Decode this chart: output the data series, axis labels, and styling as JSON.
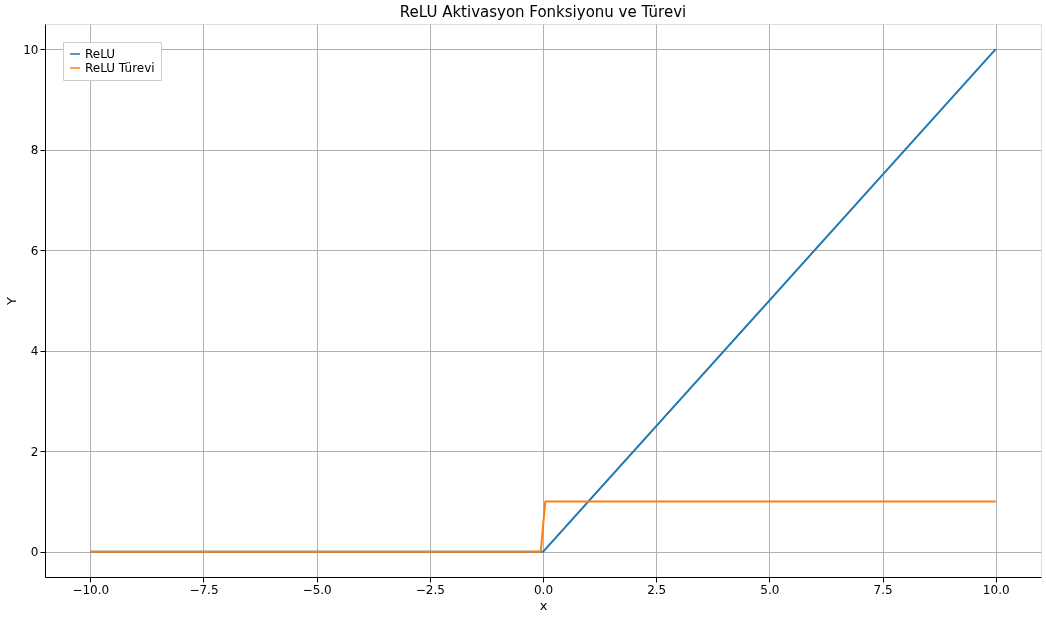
{
  "chart_data": {
    "type": "line",
    "title": "ReLU Aktivasyon Fonksiyonu ve Türevi",
    "xlabel": "x",
    "ylabel": "Y",
    "series": [
      {
        "name": "ReLU",
        "color": "#1f77b4",
        "x": [
          -10,
          0,
          10
        ],
        "values": [
          0,
          0,
          10
        ]
      },
      {
        "name": "ReLU Türevi",
        "color": "#ff7f0e",
        "x": [
          -10,
          -0.05,
          0.05,
          10
        ],
        "values": [
          0,
          0,
          1,
          1
        ]
      }
    ],
    "xlim": [
      -11,
      11
    ],
    "xticks": [
      {
        "value": -10,
        "label": "−10.0"
      },
      {
        "value": -7.5,
        "label": "−7.5"
      },
      {
        "value": -5,
        "label": "−5.0"
      },
      {
        "value": -2.5,
        "label": "−2.5"
      },
      {
        "value": 0,
        "label": "0.0"
      },
      {
        "value": 2.5,
        "label": "2.5"
      },
      {
        "value": 5,
        "label": "5.0"
      },
      {
        "value": 7.5,
        "label": "7.5"
      },
      {
        "value": 10,
        "label": "10.0"
      }
    ],
    "ylim": [
      -0.5,
      10.5
    ],
    "yticks": [
      0,
      2,
      4,
      6,
      8,
      10
    ],
    "grid": true,
    "legend": "top left",
    "marker": "none",
    "line_style": "solid"
  }
}
